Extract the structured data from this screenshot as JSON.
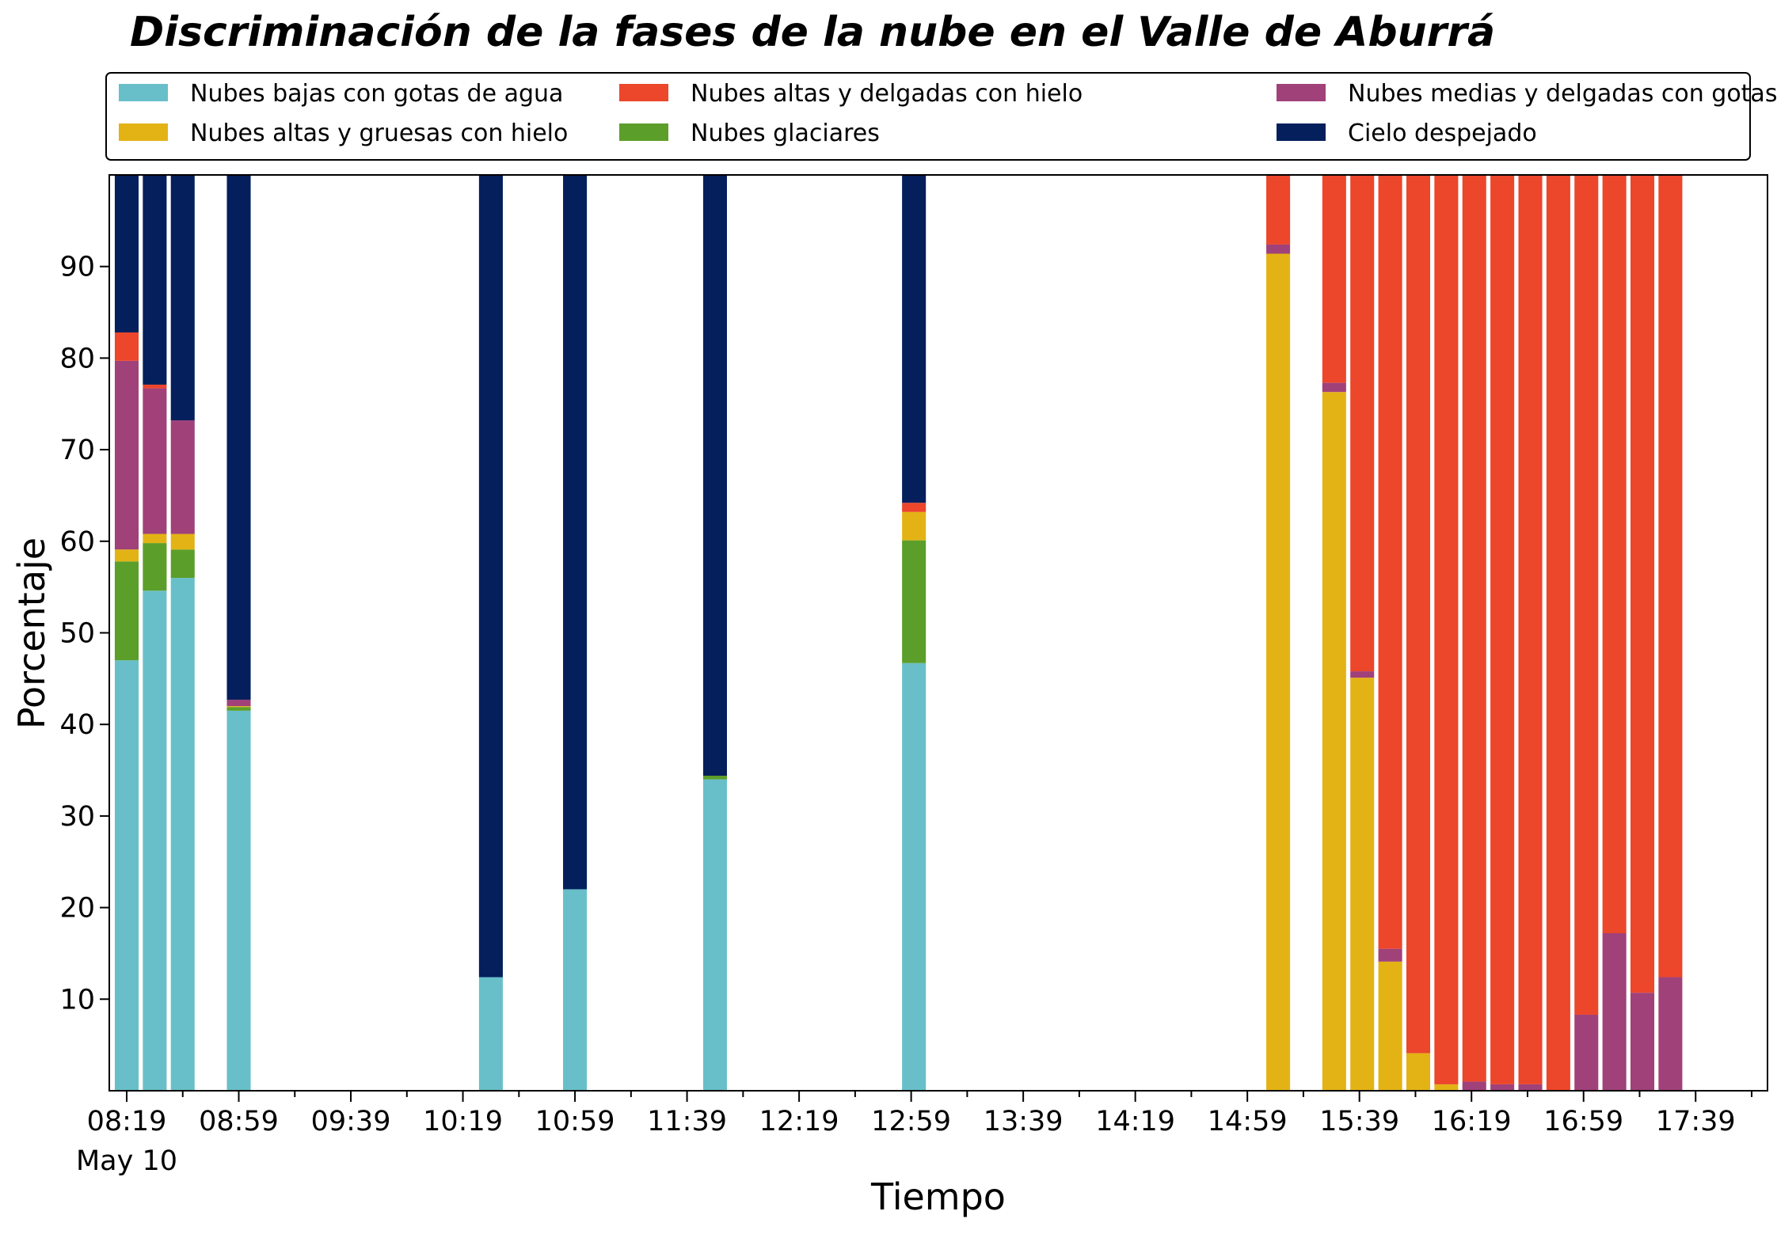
{
  "chart_data": {
    "type": "bar",
    "stacked": true,
    "title": "Discriminación de la fases de la nube en el Valle de Aburrá",
    "xlabel": "Tiempo",
    "ylabel": "Porcentaje",
    "ylim": [
      0,
      100
    ],
    "yticks": [
      10,
      20,
      30,
      40,
      50,
      60,
      70,
      80,
      90
    ],
    "x_start": "08:19",
    "x_end": "17:59",
    "bar_interval_minutes": 10,
    "xticks": [
      {
        "label": "08:19",
        "date": "May 10"
      },
      {
        "label": "08:59",
        "date": ""
      },
      {
        "label": "09:39",
        "date": ""
      },
      {
        "label": "10:19",
        "date": ""
      },
      {
        "label": "10:59",
        "date": ""
      },
      {
        "label": "11:39",
        "date": ""
      },
      {
        "label": "12:19",
        "date": ""
      },
      {
        "label": "12:59",
        "date": ""
      },
      {
        "label": "13:39",
        "date": ""
      },
      {
        "label": "14:19",
        "date": ""
      },
      {
        "label": "14:59",
        "date": ""
      },
      {
        "label": "15:39",
        "date": ""
      },
      {
        "label": "16:19",
        "date": ""
      },
      {
        "label": "16:59",
        "date": ""
      },
      {
        "label": "17:39",
        "date": ""
      }
    ],
    "legend_position": "top",
    "grid": false,
    "series": [
      {
        "name": "Nubes bajas con gotas de agua",
        "color": "#68bfc9"
      },
      {
        "name": "Nubes glaciares",
        "color": "#5c9e2a"
      },
      {
        "name": "Nubes altas y gruesas con hielo",
        "color": "#e3b315"
      },
      {
        "name": "Nubes medias y delgadas con gotas de agua",
        "color": "#a0417a"
      },
      {
        "name": "Nubes altas y delgadas con hielo",
        "color": "#ec462b"
      },
      {
        "name": "Cielo despejado",
        "color": "#041f5c"
      }
    ],
    "legend_order": [
      0,
      2,
      4,
      1,
      3,
      5
    ],
    "bars": [
      {
        "time": "08:19",
        "values": [
          47.0,
          10.8,
          1.3,
          20.6,
          3.1,
          17.2
        ]
      },
      {
        "time": "08:29",
        "values": [
          54.6,
          5.2,
          1.0,
          15.9,
          0.4,
          22.9
        ]
      },
      {
        "time": "08:39",
        "values": [
          56.0,
          3.1,
          1.7,
          12.4,
          0,
          26.8
        ]
      },
      {
        "time": "08:59",
        "values": [
          41.5,
          0.4,
          0.1,
          0.7,
          0,
          57.3
        ]
      },
      {
        "time": "10:29",
        "values": [
          12.4,
          0,
          0,
          0,
          0,
          87.6
        ]
      },
      {
        "time": "10:59",
        "values": [
          22.0,
          0,
          0,
          0,
          0,
          78.0
        ]
      },
      {
        "time": "11:49",
        "values": [
          34.0,
          0.4,
          0,
          0,
          0,
          65.6
        ]
      },
      {
        "time": "13:00",
        "values": [
          46.7,
          13.4,
          3.1,
          0,
          1.0,
          35.8
        ]
      },
      {
        "time": "15:10",
        "values": [
          0,
          0,
          91.4,
          1.0,
          7.6,
          0
        ]
      },
      {
        "time": "15:30",
        "values": [
          0,
          0,
          76.3,
          1.0,
          22.7,
          0
        ]
      },
      {
        "time": "15:40",
        "values": [
          0,
          0,
          45.1,
          0.7,
          54.2,
          0
        ]
      },
      {
        "time": "15:50",
        "values": [
          0,
          0,
          14.1,
          1.4,
          84.5,
          0
        ]
      },
      {
        "time": "16:00",
        "values": [
          0,
          0,
          4.1,
          0,
          95.9,
          0
        ]
      },
      {
        "time": "16:10",
        "values": [
          0,
          0,
          0.7,
          0,
          99.3,
          0
        ]
      },
      {
        "time": "16:20",
        "values": [
          0,
          0,
          0,
          1.0,
          99.0,
          0
        ]
      },
      {
        "time": "16:30",
        "values": [
          0,
          0,
          0,
          0.7,
          99.3,
          0
        ]
      },
      {
        "time": "16:40",
        "values": [
          0,
          0,
          0,
          0.7,
          99.3,
          0
        ]
      },
      {
        "time": "16:50",
        "values": [
          0,
          0,
          0,
          0,
          100,
          0
        ]
      },
      {
        "time": "17:00",
        "values": [
          0,
          0,
          0,
          8.3,
          91.7,
          0
        ]
      },
      {
        "time": "17:10",
        "values": [
          0,
          0,
          0,
          17.2,
          82.8,
          0
        ]
      },
      {
        "time": "17:20",
        "values": [
          0,
          0,
          0,
          10.7,
          89.3,
          0
        ]
      },
      {
        "time": "17:30",
        "values": [
          0,
          0,
          0,
          12.4,
          87.6,
          0
        ]
      }
    ]
  }
}
